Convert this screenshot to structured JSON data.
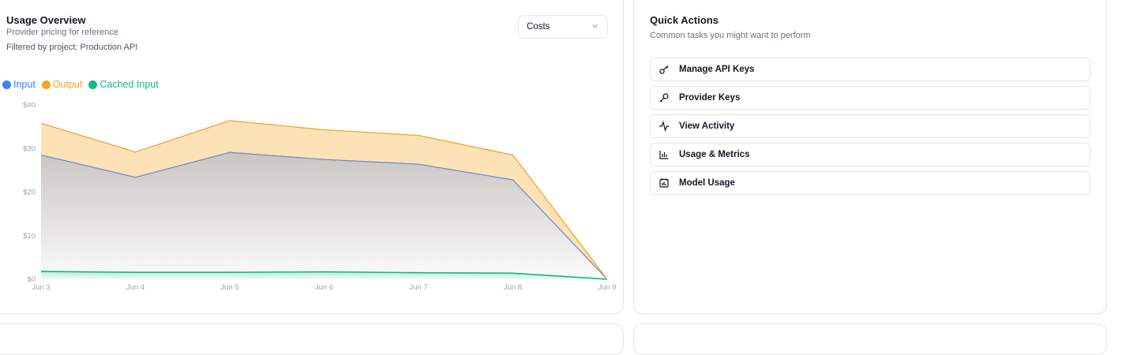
{
  "usage": {
    "title": "Usage Overview",
    "subtitle": "Provider pricing for reference",
    "filter": "Filtered by project: Production API",
    "select_value": "Costs"
  },
  "legend": [
    {
      "label": "Input",
      "color": "#3b82f6"
    },
    {
      "label": "Output",
      "color": "#f5a524"
    },
    {
      "label": "Cached Input",
      "color": "#10b981"
    }
  ],
  "chart_data": {
    "type": "area",
    "categories": [
      "Jun 3",
      "Jun 4",
      "Jun 5",
      "Jun 6",
      "Jun 7",
      "Jun 8",
      "Jun 9"
    ],
    "ylim": [
      0,
      40
    ],
    "yticks": [
      "$0",
      "$10",
      "$20",
      "$30",
      "$40"
    ],
    "grid": false,
    "stacked": true,
    "series": [
      {
        "name": "Cached Input",
        "color": "#10b981",
        "values": [
          1.8,
          1.6,
          1.6,
          1.7,
          1.5,
          1.4,
          0
        ]
      },
      {
        "name": "Input",
        "color": "#6b8fd6",
        "values": [
          26.7,
          21.8,
          27.5,
          25.8,
          24.9,
          21.4,
          0
        ]
      },
      {
        "name": "Output",
        "color": "#f5a524",
        "values": [
          7.3,
          5.8,
          7.3,
          6.8,
          6.6,
          5.7,
          0
        ]
      }
    ]
  },
  "actions": {
    "title": "Quick Actions",
    "subtitle": "Common tasks you might want to perform",
    "items": [
      {
        "label": "Manage API Keys",
        "icon": "key-icon"
      },
      {
        "label": "Provider Keys",
        "icon": "key-round-icon"
      },
      {
        "label": "View Activity",
        "icon": "activity-icon"
      },
      {
        "label": "Usage & Metrics",
        "icon": "bar-chart-icon"
      },
      {
        "label": "Model Usage",
        "icon": "calendar-chart-icon"
      }
    ]
  }
}
